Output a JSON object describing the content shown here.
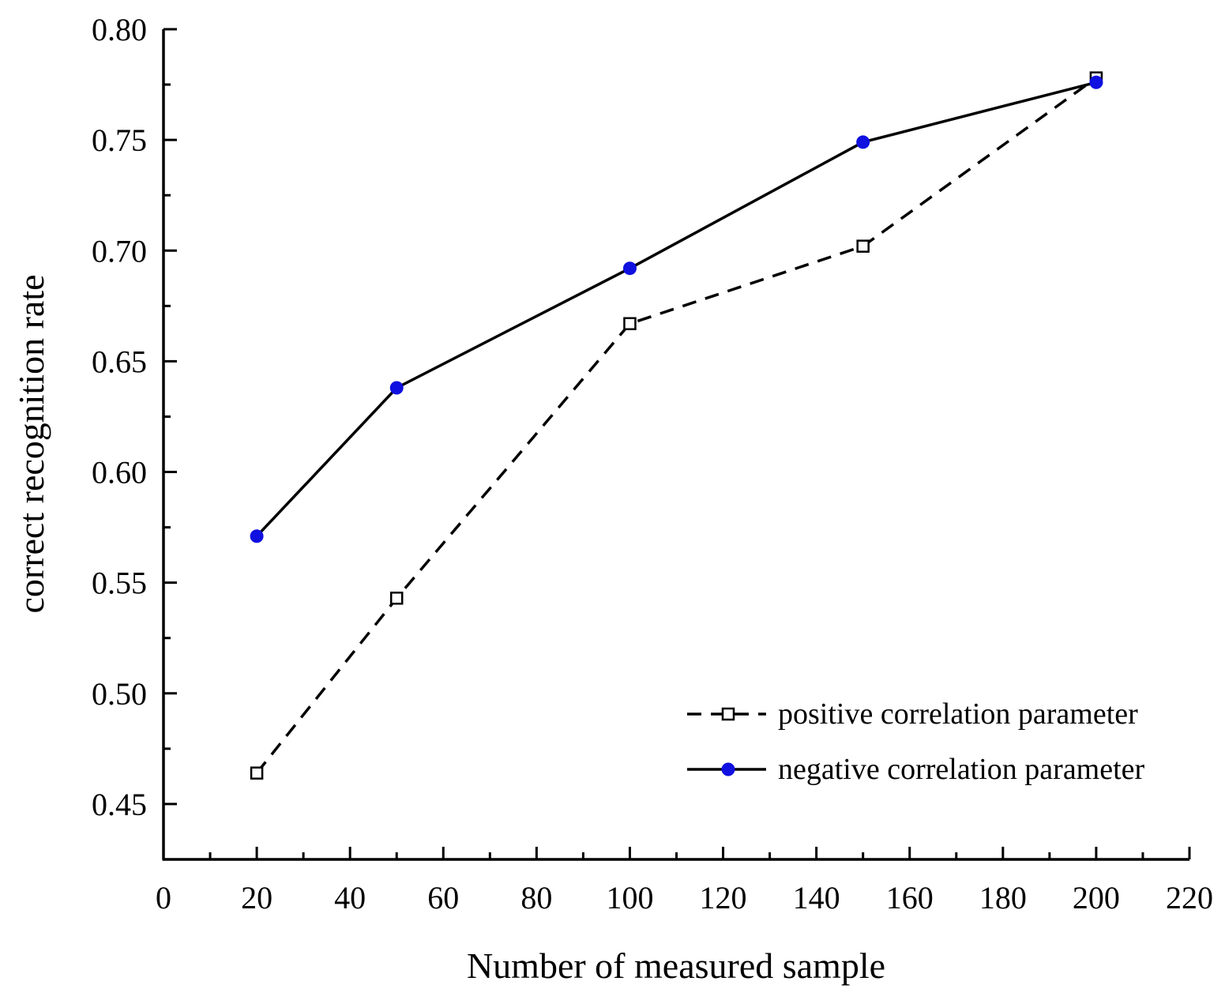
{
  "chart_data": {
    "type": "line",
    "title": "",
    "xlabel": "Number of measured sample",
    "ylabel": "correct recognition rate",
    "xlim": [
      0,
      220
    ],
    "ylim": [
      0.425,
      0.8
    ],
    "x_ticks": [
      0,
      20,
      40,
      60,
      80,
      100,
      120,
      140,
      160,
      180,
      200,
      220
    ],
    "x_tick_labels": [
      "0",
      "20",
      "40",
      "60",
      "80",
      "100",
      "120",
      "140",
      "160",
      "180",
      "200",
      "220"
    ],
    "y_ticks": [
      0.45,
      0.5,
      0.55,
      0.6,
      0.65,
      0.7,
      0.75,
      0.8
    ],
    "y_tick_labels": [
      "0.45",
      "0.50",
      "0.55",
      "0.60",
      "0.65",
      "0.70",
      "0.75",
      "0.80"
    ],
    "grid": false,
    "legend_position": "bottom-right",
    "series": [
      {
        "name": "positive correlation parameter",
        "line_style": "dashed",
        "marker": "open-square",
        "color": "#000000",
        "x": [
          20,
          50,
          100,
          150,
          200
        ],
        "values": [
          0.464,
          0.543,
          0.667,
          0.702,
          0.778
        ]
      },
      {
        "name": "negative correlation parameter",
        "line_style": "solid",
        "marker": "filled-circle",
        "color": "#000000",
        "marker_color": "#1010e0",
        "x": [
          20,
          50,
          100,
          150,
          200
        ],
        "values": [
          0.571,
          0.638,
          0.692,
          0.749,
          0.776
        ]
      }
    ]
  }
}
